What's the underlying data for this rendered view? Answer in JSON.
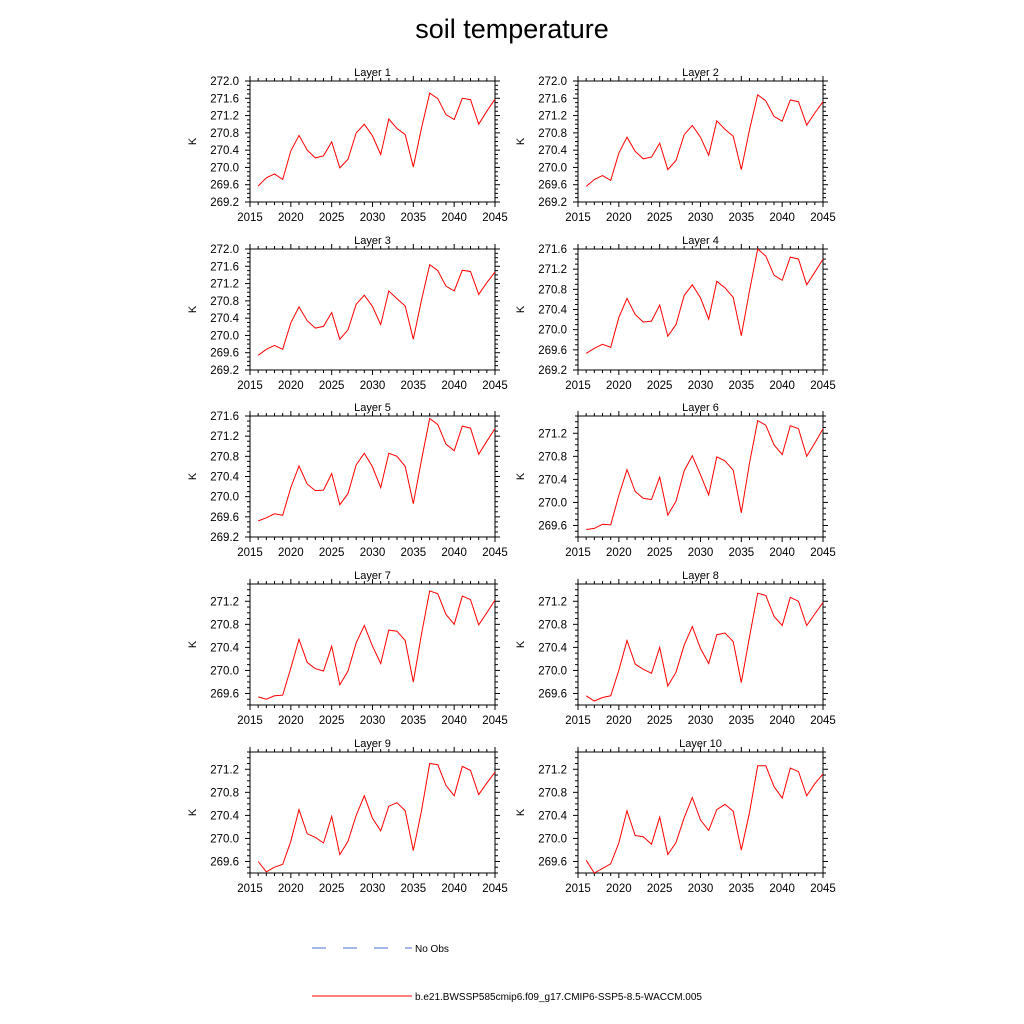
{
  "title": "soil temperature",
  "colors": {
    "model": "#ff0000",
    "obs": "#4a6cd4",
    "axis": "#000000"
  },
  "legend": {
    "obs_label": "No Obs",
    "model_label": "b.e21.BWSSP585cmip6.f09_g17.CMIP6-SSP5-8.5-WACCM.005"
  },
  "chart_data": [
    {
      "type": "line",
      "title": "Layer 1",
      "ylabel": "K",
      "xlim": [
        2015,
        2045
      ],
      "xticks": [
        2015,
        2020,
        2025,
        2030,
        2035,
        2040,
        2045
      ],
      "ylim": [
        269.2,
        272.0
      ],
      "yticks": [
        "269.2",
        "269.6",
        "270.0",
        "270.4",
        "270.8",
        "271.2",
        "271.6",
        "272.0"
      ],
      "x": [
        2016,
        2017,
        2018,
        2019,
        2020,
        2021,
        2022,
        2023,
        2024,
        2025,
        2026,
        2027,
        2028,
        2029,
        2030,
        2031,
        2032,
        2033,
        2034,
        2035,
        2036,
        2037,
        2038,
        2039,
        2040,
        2041,
        2042,
        2043,
        2044,
        2045
      ],
      "series": [
        {
          "name": "b.e21.BWSSP585cmip6.f09_g17.CMIP6-SSP5-8.5-WACCM.005",
          "values": [
            269.57,
            269.76,
            269.85,
            269.72,
            270.38,
            270.74,
            270.4,
            270.22,
            270.27,
            270.59,
            269.99,
            270.19,
            270.8,
            271.0,
            270.73,
            270.3,
            271.12,
            270.9,
            270.76,
            270.01,
            270.91,
            271.72,
            271.59,
            271.22,
            271.11,
            271.6,
            271.57,
            271.0,
            271.3,
            271.58
          ]
        }
      ]
    },
    {
      "type": "line",
      "title": "Layer 2",
      "ylabel": "K",
      "xlim": [
        2015,
        2045
      ],
      "xticks": [
        2015,
        2020,
        2025,
        2030,
        2035,
        2040,
        2045
      ],
      "ylim": [
        269.2,
        272.0
      ],
      "yticks": [
        "269.2",
        "269.6",
        "270.0",
        "270.4",
        "270.8",
        "271.2",
        "271.6",
        "272.0"
      ],
      "x": [
        2016,
        2017,
        2018,
        2019,
        2020,
        2021,
        2022,
        2023,
        2024,
        2025,
        2026,
        2027,
        2028,
        2029,
        2030,
        2031,
        2032,
        2033,
        2034,
        2035,
        2036,
        2037,
        2038,
        2039,
        2040,
        2041,
        2042,
        2043,
        2044,
        2045
      ],
      "series": [
        {
          "name": "b.e21.BWSSP585cmip6.f09_g17.CMIP6-SSP5-8.5-WACCM.005",
          "values": [
            269.56,
            269.72,
            269.81,
            269.7,
            270.33,
            270.7,
            270.37,
            270.2,
            270.24,
            270.56,
            269.95,
            270.16,
            270.76,
            270.97,
            270.7,
            270.28,
            271.08,
            270.88,
            270.72,
            269.95,
            270.87,
            271.68,
            271.54,
            271.18,
            271.07,
            271.56,
            271.52,
            270.98,
            271.26,
            271.52
          ]
        }
      ]
    },
    {
      "type": "line",
      "title": "Layer 3",
      "ylabel": "K",
      "xlim": [
        2015,
        2045
      ],
      "xticks": [
        2015,
        2020,
        2025,
        2030,
        2035,
        2040,
        2045
      ],
      "ylim": [
        269.2,
        272.0
      ],
      "yticks": [
        "269.2",
        "269.6",
        "270.0",
        "270.4",
        "270.8",
        "271.2",
        "271.6",
        "272.0"
      ],
      "x": [
        2016,
        2017,
        2018,
        2019,
        2020,
        2021,
        2022,
        2023,
        2024,
        2025,
        2026,
        2027,
        2028,
        2029,
        2030,
        2031,
        2032,
        2033,
        2034,
        2035,
        2036,
        2037,
        2038,
        2039,
        2040,
        2041,
        2042,
        2043,
        2044,
        2045
      ],
      "series": [
        {
          "name": "b.e21.BWSSP585cmip6.f09_g17.CMIP6-SSP5-8.5-WACCM.005",
          "values": [
            269.54,
            269.68,
            269.77,
            269.68,
            270.29,
            270.66,
            270.34,
            270.17,
            270.21,
            270.53,
            269.91,
            270.13,
            270.72,
            270.93,
            270.67,
            270.25,
            271.03,
            270.85,
            270.68,
            269.91,
            270.82,
            271.64,
            271.5,
            271.14,
            271.03,
            271.51,
            271.48,
            270.95,
            271.22,
            271.47
          ]
        }
      ]
    },
    {
      "type": "line",
      "title": "Layer 4",
      "ylabel": "K",
      "xlim": [
        2015,
        2045
      ],
      "xticks": [
        2015,
        2020,
        2025,
        2030,
        2035,
        2040,
        2045
      ],
      "ylim": [
        269.2,
        271.6
      ],
      "yticks": [
        "269.2",
        "269.6",
        "270.0",
        "270.4",
        "270.8",
        "271.2",
        "271.6"
      ],
      "x": [
        2016,
        2017,
        2018,
        2019,
        2020,
        2021,
        2022,
        2023,
        2024,
        2025,
        2026,
        2027,
        2028,
        2029,
        2030,
        2031,
        2032,
        2033,
        2034,
        2035,
        2036,
        2037,
        2038,
        2039,
        2040,
        2041,
        2042,
        2043,
        2044,
        2045
      ],
      "series": [
        {
          "name": "b.e21.BWSSP585cmip6.f09_g17.CMIP6-SSP5-8.5-WACCM.005",
          "values": [
            269.53,
            269.63,
            269.71,
            269.65,
            270.24,
            270.62,
            270.3,
            270.15,
            270.17,
            270.49,
            269.87,
            270.1,
            270.68,
            270.89,
            270.63,
            270.21,
            270.96,
            270.83,
            270.64,
            269.88,
            270.77,
            271.6,
            271.46,
            271.08,
            270.98,
            271.44,
            271.4,
            270.89,
            271.14,
            271.4
          ]
        }
      ]
    },
    {
      "type": "line",
      "title": "Layer 5",
      "ylabel": "K",
      "xlim": [
        2015,
        2045
      ],
      "xticks": [
        2015,
        2020,
        2025,
        2030,
        2035,
        2040,
        2045
      ],
      "ylim": [
        269.2,
        271.6
      ],
      "yticks": [
        "269.2",
        "269.6",
        "270.0",
        "270.4",
        "270.8",
        "271.2",
        "271.6"
      ],
      "x": [
        2016,
        2017,
        2018,
        2019,
        2020,
        2021,
        2022,
        2023,
        2024,
        2025,
        2026,
        2027,
        2028,
        2029,
        2030,
        2031,
        2032,
        2033,
        2034,
        2035,
        2036,
        2037,
        2038,
        2039,
        2040,
        2041,
        2042,
        2043,
        2044,
        2045
      ],
      "series": [
        {
          "name": "b.e21.BWSSP585cmip6.f09_g17.CMIP6-SSP5-8.5-WACCM.005",
          "values": [
            269.52,
            269.58,
            269.66,
            269.63,
            270.18,
            270.61,
            270.25,
            270.12,
            270.13,
            270.46,
            269.84,
            270.06,
            270.63,
            270.86,
            270.59,
            270.18,
            270.86,
            270.8,
            270.6,
            269.86,
            270.73,
            271.55,
            271.43,
            271.04,
            270.91,
            271.4,
            271.36,
            270.84,
            271.1,
            271.35
          ]
        }
      ]
    },
    {
      "type": "line",
      "title": "Layer 6",
      "ylabel": "K",
      "xlim": [
        2015,
        2045
      ],
      "xticks": [
        2015,
        2020,
        2025,
        2030,
        2035,
        2040,
        2045
      ],
      "ylim": [
        269.4,
        271.5
      ],
      "yticks": [
        "269.6",
        "270.0",
        "270.4",
        "270.8",
        "271.2"
      ],
      "x": [
        2016,
        2017,
        2018,
        2019,
        2020,
        2021,
        2022,
        2023,
        2024,
        2025,
        2026,
        2027,
        2028,
        2029,
        2030,
        2031,
        2032,
        2033,
        2034,
        2035,
        2036,
        2037,
        2038,
        2039,
        2040,
        2041,
        2042,
        2043,
        2044,
        2045
      ],
      "series": [
        {
          "name": "b.e21.BWSSP585cmip6.f09_g17.CMIP6-SSP5-8.5-WACCM.005",
          "values": [
            269.53,
            269.55,
            269.62,
            269.61,
            270.12,
            270.57,
            270.19,
            270.07,
            270.05,
            270.44,
            269.78,
            270.02,
            270.55,
            270.81,
            270.48,
            270.13,
            270.79,
            270.72,
            270.56,
            269.82,
            270.68,
            271.42,
            271.34,
            271.0,
            270.83,
            271.33,
            271.28,
            270.8,
            271.03,
            271.28
          ]
        }
      ]
    },
    {
      "type": "line",
      "title": "Layer 7",
      "ylabel": "K",
      "xlim": [
        2015,
        2045
      ],
      "xticks": [
        2015,
        2020,
        2025,
        2030,
        2035,
        2040,
        2045
      ],
      "ylim": [
        269.4,
        271.5
      ],
      "yticks": [
        "269.6",
        "270.0",
        "270.4",
        "270.8",
        "271.2"
      ],
      "x": [
        2016,
        2017,
        2018,
        2019,
        2020,
        2021,
        2022,
        2023,
        2024,
        2025,
        2026,
        2027,
        2028,
        2029,
        2030,
        2031,
        2032,
        2033,
        2034,
        2035,
        2036,
        2037,
        2038,
        2039,
        2040,
        2041,
        2042,
        2043,
        2044,
        2045
      ],
      "series": [
        {
          "name": "b.e21.BWSSP585cmip6.f09_g17.CMIP6-SSP5-8.5-WACCM.005",
          "values": [
            269.54,
            269.5,
            269.56,
            269.57,
            270.04,
            270.54,
            270.14,
            270.03,
            269.99,
            270.42,
            269.75,
            269.99,
            270.48,
            270.78,
            270.42,
            270.12,
            270.7,
            270.68,
            270.52,
            269.8,
            270.63,
            271.38,
            271.33,
            270.97,
            270.8,
            271.29,
            271.23,
            270.79,
            271.0,
            271.22
          ]
        }
      ]
    },
    {
      "type": "line",
      "title": "Layer 8",
      "ylabel": "K",
      "xlim": [
        2015,
        2045
      ],
      "xticks": [
        2015,
        2020,
        2025,
        2030,
        2035,
        2040,
        2045
      ],
      "ylim": [
        269.4,
        271.5
      ],
      "yticks": [
        "269.6",
        "270.0",
        "270.4",
        "270.8",
        "271.2"
      ],
      "x": [
        2016,
        2017,
        2018,
        2019,
        2020,
        2021,
        2022,
        2023,
        2024,
        2025,
        2026,
        2027,
        2028,
        2029,
        2030,
        2031,
        2032,
        2033,
        2034,
        2035,
        2036,
        2037,
        2038,
        2039,
        2040,
        2041,
        2042,
        2043,
        2044,
        2045
      ],
      "series": [
        {
          "name": "b.e21.BWSSP585cmip6.f09_g17.CMIP6-SSP5-8.5-WACCM.005",
          "values": [
            269.56,
            269.47,
            269.53,
            269.56,
            270.0,
            270.52,
            270.11,
            270.02,
            269.95,
            270.4,
            269.73,
            269.97,
            270.44,
            270.76,
            270.38,
            270.12,
            270.62,
            270.65,
            270.5,
            269.79,
            270.58,
            271.34,
            271.3,
            270.94,
            270.78,
            271.27,
            271.2,
            270.78,
            270.98,
            271.18
          ]
        }
      ]
    },
    {
      "type": "line",
      "title": "Layer 9",
      "ylabel": "K",
      "xlim": [
        2015,
        2045
      ],
      "xticks": [
        2015,
        2020,
        2025,
        2030,
        2035,
        2040,
        2045
      ],
      "ylim": [
        269.4,
        271.5
      ],
      "yticks": [
        "269.6",
        "270.0",
        "270.4",
        "270.8",
        "271.2"
      ],
      "x": [
        2016,
        2017,
        2018,
        2019,
        2020,
        2021,
        2022,
        2023,
        2024,
        2025,
        2026,
        2027,
        2028,
        2029,
        2030,
        2031,
        2032,
        2033,
        2034,
        2035,
        2036,
        2037,
        2038,
        2039,
        2040,
        2041,
        2042,
        2043,
        2044,
        2045
      ],
      "series": [
        {
          "name": "b.e21.BWSSP585cmip6.f09_g17.CMIP6-SSP5-8.5-WACCM.005",
          "values": [
            269.6,
            269.42,
            269.5,
            269.55,
            269.95,
            270.5,
            270.08,
            270.02,
            269.92,
            270.38,
            269.72,
            269.95,
            270.4,
            270.74,
            270.35,
            270.13,
            270.56,
            270.62,
            270.48,
            269.79,
            270.48,
            271.3,
            271.28,
            270.92,
            270.74,
            271.25,
            271.18,
            270.76,
            270.96,
            271.15
          ]
        }
      ]
    },
    {
      "type": "line",
      "title": "Layer 10",
      "ylabel": "K",
      "xlim": [
        2015,
        2045
      ],
      "xticks": [
        2015,
        2020,
        2025,
        2030,
        2035,
        2040,
        2045
      ],
      "ylim": [
        269.4,
        271.5
      ],
      "yticks": [
        "269.6",
        "270.0",
        "270.4",
        "270.8",
        "271.2"
      ],
      "x": [
        2016,
        2017,
        2018,
        2019,
        2020,
        2021,
        2022,
        2023,
        2024,
        2025,
        2026,
        2027,
        2028,
        2029,
        2030,
        2031,
        2032,
        2033,
        2034,
        2035,
        2036,
        2037,
        2038,
        2039,
        2040,
        2041,
        2042,
        2043,
        2044,
        2045
      ],
      "series": [
        {
          "name": "b.e21.BWSSP585cmip6.f09_g17.CMIP6-SSP5-8.5-WACCM.005",
          "values": [
            269.62,
            269.4,
            269.48,
            269.56,
            269.92,
            270.48,
            270.05,
            270.03,
            269.9,
            270.37,
            269.72,
            269.93,
            270.36,
            270.71,
            270.32,
            270.14,
            270.5,
            270.59,
            270.47,
            269.8,
            270.45,
            271.26,
            271.26,
            270.9,
            270.7,
            271.22,
            271.16,
            270.74,
            270.95,
            271.12
          ]
        }
      ]
    }
  ]
}
